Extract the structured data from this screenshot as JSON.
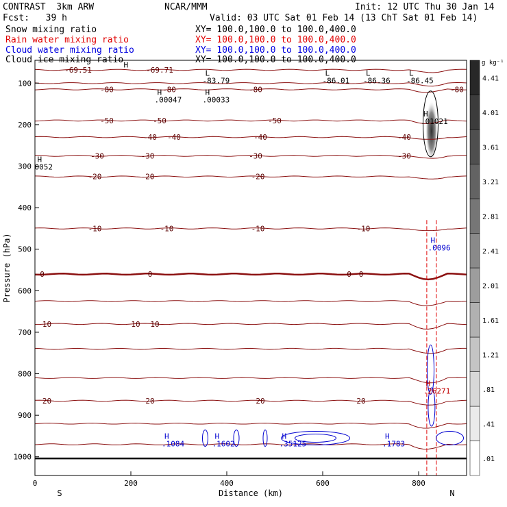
{
  "header": {
    "model": "CONTRAST  3km ARW",
    "org": "NCAR/MMM",
    "init": "Init: 12 UTC Thu 30 Jan 14",
    "fcst": "Fcst:   39 h",
    "valid": "Valid: 03 UTC Sat 01 Feb 14 (13 ChT Sat 01 Feb 14)",
    "fields": [
      {
        "name": "Snow mixing ratio",
        "xy": "XY= 100.0,100.0 to 100.0,400.0",
        "color": "#000000"
      },
      {
        "name": "Rain water mixing ratio",
        "xy": "XY= 100.0,100.0 to 100.0,400.0",
        "color": "#e00000"
      },
      {
        "name": "Cloud water mixing ratio",
        "xy": "XY= 100.0,100.0 to 100.0,400.0",
        "color": "#0000e0"
      },
      {
        "name": "Cloud ice mixing ratio",
        "xy": "XY= 100.0,100.0 to 100.0,400.0",
        "color": "#000000"
      }
    ]
  },
  "chart_data": {
    "type": "cross-section",
    "xlabel": "Distance (km)",
    "ylabel": "Pressure (hPa)",
    "xlim": [
      0,
      900
    ],
    "ylim": [
      1045,
      45
    ],
    "x_ticks": [
      0,
      200,
      400,
      600,
      800
    ],
    "y_ticks": [
      100,
      200,
      300,
      400,
      500,
      600,
      700,
      800,
      900,
      1000
    ],
    "end_labels": {
      "left": "S",
      "right": "N"
    },
    "colorbar": {
      "unit": "g kg⁻¹",
      "labels": [
        ".01",
        ".41",
        ".81",
        "1.21",
        "1.61",
        "2.01",
        "2.41",
        "2.81",
        "3.21",
        "3.61",
        "4.01",
        "4.41"
      ]
    },
    "temperature_contours": [
      {
        "p": 68,
        "label": "-69.51",
        "lx": 90
      },
      {
        "p": 68,
        "label": "-69.71",
        "lx": 260
      },
      {
        "p": 100,
        "label": "",
        "lx": -1
      },
      {
        "p": 115,
        "label": "-80",
        "lx": 150
      },
      {
        "p": 115,
        "label": "-80",
        "lx": 280
      },
      {
        "p": 115,
        "label": "-80",
        "lx": 460
      },
      {
        "p": 115,
        "label": "-80",
        "lx": 880
      },
      {
        "p": 190,
        "label": "-50",
        "lx": 150
      },
      {
        "p": 190,
        "label": "-50",
        "lx": 260
      },
      {
        "p": 190,
        "label": "-50",
        "lx": 500
      },
      {
        "p": 230,
        "label": "-40",
        "lx": 240
      },
      {
        "p": 230,
        "label": "-40",
        "lx": 290
      },
      {
        "p": 230,
        "label": "-40",
        "lx": 470
      },
      {
        "p": 230,
        "label": "-40",
        "lx": 770
      },
      {
        "p": 275,
        "label": "-30",
        "lx": 130
      },
      {
        "p": 275,
        "label": "-30",
        "lx": 235
      },
      {
        "p": 275,
        "label": "-30",
        "lx": 460
      },
      {
        "p": 275,
        "label": "-30",
        "lx": 770
      },
      {
        "p": 325,
        "label": "-20",
        "lx": 125
      },
      {
        "p": 325,
        "label": "-20",
        "lx": 235
      },
      {
        "p": 325,
        "label": "-20",
        "lx": 465
      },
      {
        "p": 450,
        "label": "-10",
        "lx": 125
      },
      {
        "p": 450,
        "label": "-10",
        "lx": 275
      },
      {
        "p": 450,
        "label": "-10",
        "lx": 465
      },
      {
        "p": 450,
        "label": "-10",
        "lx": 685
      },
      {
        "p": 560,
        "label": "0",
        "lx": 15
      },
      {
        "p": 560,
        "label": "0",
        "lx": 240
      },
      {
        "p": 560,
        "label": "0",
        "lx": 655
      },
      {
        "p": 560,
        "label": "0",
        "lx": 680
      },
      {
        "p": 625,
        "label": "",
        "lx": -1
      },
      {
        "p": 680,
        "label": "10",
        "lx": 25
      },
      {
        "p": 680,
        "label": "10",
        "lx": 210
      },
      {
        "p": 680,
        "label": "10",
        "lx": 250
      },
      {
        "p": 740,
        "label": "",
        "lx": -1
      },
      {
        "p": 810,
        "label": "",
        "lx": -1
      },
      {
        "p": 865,
        "label": "20",
        "lx": 25
      },
      {
        "p": 865,
        "label": "20",
        "lx": 240
      },
      {
        "p": 865,
        "label": "20",
        "lx": 470
      },
      {
        "p": 865,
        "label": "20",
        "lx": 680
      },
      {
        "p": 920,
        "label": "",
        "lx": -1
      },
      {
        "p": 970,
        "label": "",
        "lx": -1
      }
    ],
    "extrema_labels": [
      {
        "mark": "H",
        "x": 185,
        "p": 62,
        "value": ""
      },
      {
        "mark": "L",
        "x": 355,
        "p": 82,
        "value": "-83.79"
      },
      {
        "mark": "L",
        "x": 605,
        "p": 82,
        "value": "-86.01"
      },
      {
        "mark": "L",
        "x": 690,
        "p": 82,
        "value": "-86.36"
      },
      {
        "mark": "L",
        "x": 780,
        "p": 82,
        "value": "-86.45"
      },
      {
        "mark": "H",
        "x": 255,
        "p": 128,
        "value": ".00047"
      },
      {
        "mark": "H",
        "x": 355,
        "p": 128,
        "value": ".00033"
      },
      {
        "mark": "H",
        "x": 810,
        "p": 180,
        "value": ".01021"
      },
      {
        "mark": "H",
        "x": 5,
        "p": 290,
        "value": "0052"
      },
      {
        "mark": "H",
        "x": 825,
        "p": 485,
        "value": ".0096"
      },
      {
        "mark": "H",
        "x": 270,
        "p": 957,
        "value": ".1084"
      },
      {
        "mark": "H",
        "x": 375,
        "p": 957,
        "value": ".1602"
      },
      {
        "mark": "H",
        "x": 515,
        "p": 957,
        "value": ".35125"
      },
      {
        "mark": "H",
        "x": 730,
        "p": 957,
        "value": ".1783"
      },
      {
        "mark": "H",
        "x": 815,
        "p": 830,
        "value": ".26271"
      }
    ]
  }
}
